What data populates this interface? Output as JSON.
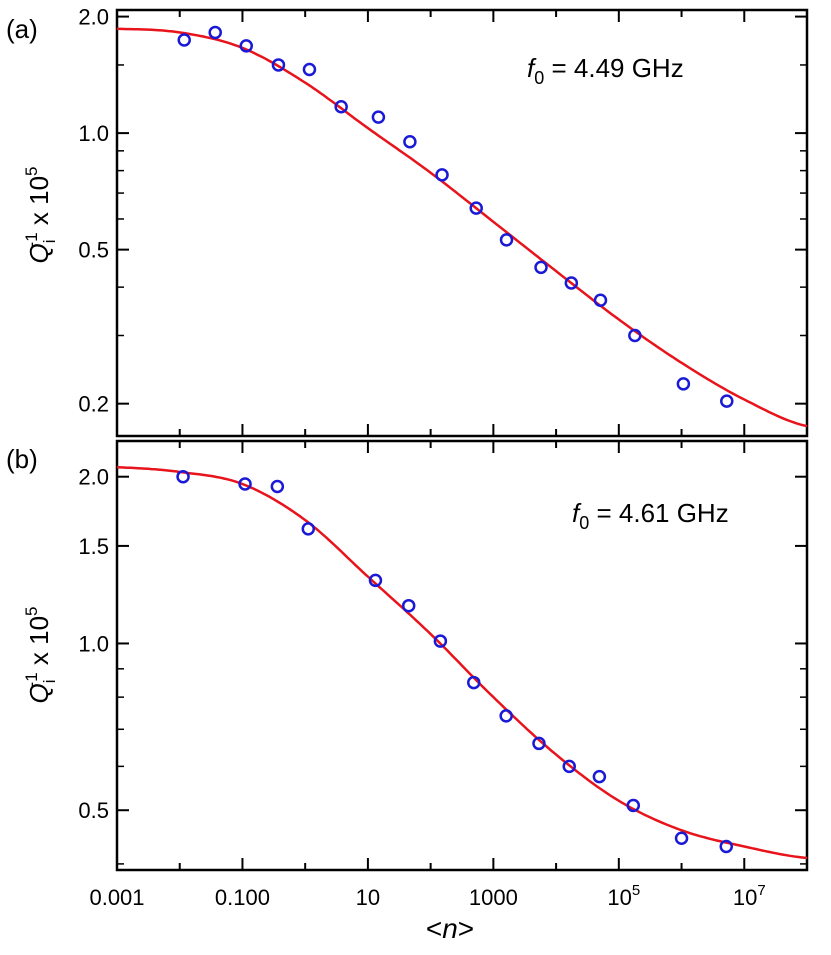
{
  "colors": {
    "fit": "#e8131b",
    "marker": "#1a1ad6",
    "axis": "#000000"
  },
  "x_axis": {
    "label_prefix": "<",
    "label_var": "n",
    "label_suffix": ">",
    "scale": "log",
    "range": [
      0.001,
      100000000.0
    ],
    "ticks": [
      {
        "value": 0.001,
        "label": "0.001"
      },
      {
        "value": 0.1,
        "label": "0.100"
      },
      {
        "value": 10,
        "label": "10"
      },
      {
        "value": 1000,
        "label": "1000"
      },
      {
        "value": 100000,
        "label": "10",
        "exp": "5"
      },
      {
        "value": 10000000,
        "label": "10",
        "exp": "7"
      }
    ]
  },
  "chart_data": [
    {
      "panel": "(a)",
      "type": "scatter",
      "yscale": "log",
      "ylim": [
        0.165,
        2.08
      ],
      "ylabel": {
        "var": "Q",
        "sub": "i",
        "sup": "-1",
        "rest": " x 10",
        "exp": "5"
      },
      "yticks": [
        {
          "value": 2.0,
          "label": "2.0"
        },
        {
          "value": 1.0,
          "label": "1.0"
        },
        {
          "value": 0.5,
          "label": "0.5"
        },
        {
          "value": 0.2,
          "label": "0.2"
        }
      ],
      "annotation": {
        "var": "f",
        "sub": "0",
        "text": " = 4.49 GHz"
      },
      "points": {
        "x": [
          0.0118,
          0.0368,
          0.115,
          0.375,
          1.17,
          3.75,
          14.7,
          46.7,
          152,
          533,
          1620,
          5750,
          17500,
          51000,
          180000,
          1070000,
          5260000
        ],
        "y": [
          1.74,
          1.82,
          1.68,
          1.5,
          1.46,
          1.17,
          1.1,
          0.95,
          0.78,
          0.64,
          0.53,
          0.45,
          0.41,
          0.37,
          0.3,
          0.225,
          0.203
        ]
      },
      "fit": {
        "x": [
          0.001,
          0.01,
          0.1,
          1,
          10,
          100,
          1000,
          10000,
          100000,
          1000000,
          10000000,
          100000000
        ],
        "y": [
          1.86,
          1.82,
          1.66,
          1.35,
          1.03,
          0.79,
          0.59,
          0.44,
          0.33,
          0.255,
          0.205,
          0.175
        ]
      }
    },
    {
      "panel": "(b)",
      "type": "scatter",
      "yscale": "log",
      "ylim": [
        0.39,
        2.32
      ],
      "ylabel": {
        "var": "Q",
        "sub": "i",
        "sup": "-1",
        "rest": " x 10",
        "exp": "5"
      },
      "yticks": [
        {
          "value": 2.0,
          "label": "2.0"
        },
        {
          "value": 1.5,
          "label": "1.5"
        },
        {
          "value": 1.0,
          "label": "1.0"
        },
        {
          "value": 0.5,
          "label": "0.5"
        }
      ],
      "annotation": {
        "var": "f",
        "sub": "0",
        "text": " = 4.61 GHz"
      },
      "points": {
        "x": [
          0.0113,
          0.11,
          0.36,
          1.12,
          13.2,
          44.7,
          143,
          487,
          1600,
          5330,
          16200,
          49000,
          170000,
          1000000,
          5160000
        ],
        "y": [
          2.0,
          1.94,
          1.92,
          1.61,
          1.3,
          1.17,
          1.01,
          0.85,
          0.74,
          0.66,
          0.6,
          0.575,
          0.51,
          0.445,
          0.43
        ]
      },
      "fit": {
        "x": [
          0.001,
          0.01,
          0.1,
          1,
          10,
          100,
          1000,
          10000,
          100000,
          1000000,
          10000000,
          100000000
        ],
        "y": [
          2.08,
          2.04,
          1.94,
          1.67,
          1.32,
          1.04,
          0.8,
          0.63,
          0.52,
          0.46,
          0.43,
          0.41
        ]
      }
    }
  ]
}
